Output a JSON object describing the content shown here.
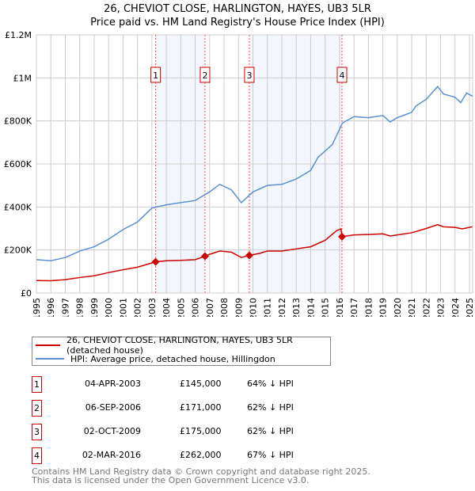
{
  "title": "26, CHEVIOT CLOSE, HARLINGTON, HAYES, UB3 5LR",
  "subtitle": "Price paid vs. HM Land Registry's House Price Index (HPI)",
  "chart_data": {
    "type": "line",
    "title": "26, CHEVIOT CLOSE, HARLINGTON, HAYES, UB3 5LR",
    "ylim": [
      0,
      1200000
    ],
    "xlim": [
      1995,
      2025.3
    ],
    "yticks": [
      {
        "v": 0,
        "label": "£0"
      },
      {
        "v": 200000,
        "label": "£200K"
      },
      {
        "v": 400000,
        "label": "£400K"
      },
      {
        "v": 600000,
        "label": "£600K"
      },
      {
        "v": 800000,
        "label": "£800K"
      },
      {
        "v": 1000000,
        "label": "£1M"
      },
      {
        "v": 1200000,
        "label": "£1.2M"
      }
    ],
    "xticks": [
      "1995",
      "1996",
      "1997",
      "1998",
      "1999",
      "2000",
      "2001",
      "2002",
      "2003",
      "2004",
      "2005",
      "2006",
      "2007",
      "2008",
      "2009",
      "2010",
      "2011",
      "2012",
      "2013",
      "2014",
      "2015",
      "2016",
      "2017",
      "2018",
      "2019",
      "2020",
      "2021",
      "2022",
      "2023",
      "2024",
      "2025"
    ],
    "series": [
      {
        "name": "26, CHEVIOT CLOSE, HARLINGTON, HAYES, UB3 5LR (detached house)",
        "color": "#cc0000",
        "x": [
          1995,
          1996,
          1997,
          1998,
          1999,
          2000,
          2001,
          2002,
          2003.26,
          2004,
          2005,
          2006,
          2006.68,
          2007,
          2007.7,
          2008.5,
          2009.2,
          2009.75,
          2010.5,
          2011,
          2012,
          2013,
          2014,
          2015,
          2015.8,
          2016.1,
          2016.17,
          2017,
          2018,
          2019,
          2019.5,
          2020,
          2021,
          2022,
          2022.8,
          2023.2,
          2024,
          2024.5,
          2025.2
        ],
        "y": [
          58000,
          57000,
          62000,
          72000,
          80000,
          95000,
          108000,
          120000,
          145000,
          150000,
          152000,
          155000,
          171000,
          180000,
          195000,
          190000,
          165000,
          175000,
          185000,
          195000,
          195000,
          205000,
          215000,
          245000,
          290000,
          298000,
          262000,
          270000,
          272000,
          275000,
          265000,
          270000,
          280000,
          300000,
          318000,
          308000,
          305000,
          298000,
          308000
        ]
      },
      {
        "name": "HPI: Average price, detached house, Hillingdon",
        "color": "#5b8fd0",
        "x": [
          1995,
          1996,
          1997,
          1998,
          1999,
          2000,
          2001,
          2002,
          2003,
          2004,
          2005,
          2006,
          2007,
          2007.7,
          2008.5,
          2009.2,
          2010,
          2011,
          2012,
          2013,
          2014,
          2014.5,
          2015.5,
          2016.2,
          2017,
          2018,
          2019,
          2019.5,
          2020,
          2021,
          2021.3,
          2022,
          2022.8,
          2023.2,
          2024,
          2024.4,
          2024.8,
          2025.2
        ],
        "y": [
          155000,
          150000,
          165000,
          195000,
          215000,
          250000,
          295000,
          330000,
          395000,
          410000,
          420000,
          430000,
          470000,
          505000,
          480000,
          420000,
          470000,
          500000,
          505000,
          530000,
          570000,
          630000,
          690000,
          790000,
          820000,
          815000,
          825000,
          795000,
          815000,
          840000,
          870000,
          900000,
          960000,
          925000,
          910000,
          885000,
          930000,
          915000
        ]
      }
    ],
    "sales": [
      {
        "n": "1",
        "x": 2003.26,
        "y": 145000,
        "date": "04-APR-2003",
        "price": "£145,000",
        "hpi": "64% ↓ HPI"
      },
      {
        "n": "2",
        "x": 2006.68,
        "y": 171000,
        "date": "06-SEP-2006",
        "price": "£171,000",
        "hpi": "62% ↓ HPI"
      },
      {
        "n": "3",
        "x": 2009.75,
        "y": 175000,
        "date": "02-OCT-2009",
        "price": "£175,000",
        "hpi": "62% ↓ HPI"
      },
      {
        "n": "4",
        "x": 2016.17,
        "y": 262000,
        "date": "02-MAR-2016",
        "price": "£262,000",
        "hpi": "67% ↓ HPI"
      }
    ],
    "legend_placement": "below"
  },
  "footer": [
    "Contains HM Land Registry data © Crown copyright and database right 2025.",
    "This data is licensed under the Open Government Licence v3.0."
  ]
}
